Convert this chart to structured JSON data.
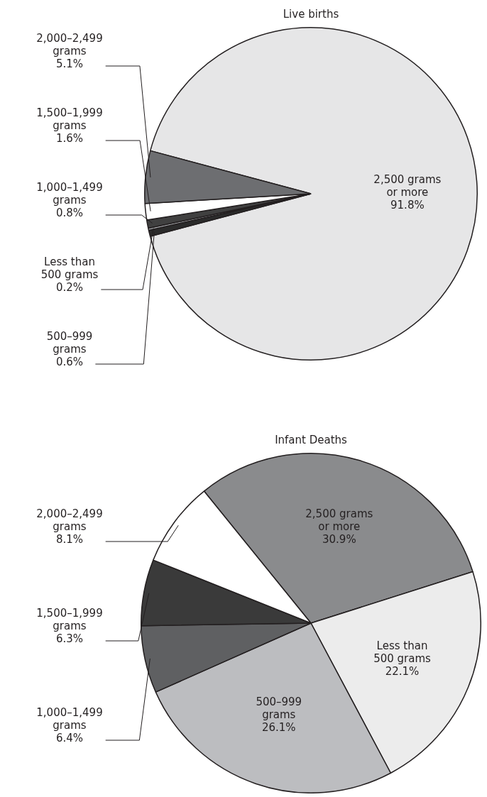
{
  "chart_data": [
    {
      "type": "pie",
      "title": "Live births",
      "categories": [
        "2,500 grams or more",
        "500–999 grams",
        "Less than 500 grams",
        "1,000–1,499 grams",
        "1,500–1,999 grams",
        "2,000–2,499 grams"
      ],
      "values": [
        91.8,
        0.6,
        0.2,
        0.8,
        1.6,
        5.1
      ],
      "value_labels": [
        "91.8%",
        "0.6%",
        "0.2%",
        "0.8%",
        "1.6%",
        "5.1%"
      ],
      "colors": [
        "#e6e6e7",
        "#2b2b2b",
        "#a7a9ac",
        "#404040",
        "#ffffff",
        "#6d6e71"
      ]
    },
    {
      "type": "pie",
      "title": "Infant Deaths",
      "categories": [
        "2,500 grams or more",
        "Less than 500 grams",
        "500–999 grams",
        "1,000–1,499 grams",
        "1,500–1,999 grams",
        "2,000–2,499 grams"
      ],
      "values": [
        30.9,
        22.1,
        26.1,
        6.4,
        6.3,
        8.1
      ],
      "value_labels": [
        "30.9%",
        "22.1%",
        "26.1%",
        "6.4%",
        "6.3%",
        "8.1%"
      ],
      "colors": [
        "#8a8b8d",
        "#ececec",
        "#bcbdc0",
        "#5f6062",
        "#3a3a3a",
        "#ffffff"
      ]
    }
  ]
}
